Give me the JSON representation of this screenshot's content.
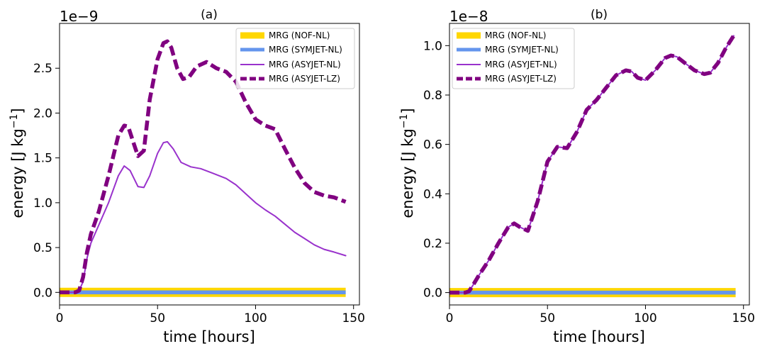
{
  "chart_data": [
    {
      "type": "line",
      "title": "(a)",
      "offset_text": "1e−9",
      "xlabel": "time [hours]",
      "ylabel_main": "energy [J kg",
      "ylabel_sup": "−1",
      "ylabel_end": "]",
      "xlim": [
        0,
        153
      ],
      "ylim": [
        -0.14,
        3.0
      ],
      "xticks": [
        0,
        50,
        100,
        150
      ],
      "xtick_labels": [
        "0",
        "50",
        "100",
        "150"
      ],
      "yticks": [
        0.0,
        0.5,
        1.0,
        1.5,
        2.0,
        2.5
      ],
      "ytick_labels": [
        "0.0",
        "0.5",
        "1.0",
        "1.5",
        "2.0",
        "2.5"
      ],
      "grid": false,
      "legend_position": "top-right",
      "series": [
        {
          "name": "MRG (NOF-NL)",
          "color": "#FFD700",
          "style": "thick",
          "x": [
            0,
            146
          ],
          "y": [
            0,
            0
          ]
        },
        {
          "name": "MRG (SYMJET-NL)",
          "color": "#6495ED",
          "style": "medium",
          "x": [
            0,
            146
          ],
          "y": [
            0,
            0
          ]
        },
        {
          "name": "MRG (ASYJET-NL)",
          "color": "#9932CC",
          "style": "thin",
          "x": [
            0,
            8,
            10,
            12,
            14,
            16,
            20,
            25,
            30,
            33,
            36,
            40,
            43,
            46,
            50,
            53,
            55,
            58,
            62,
            67,
            72,
            78,
            85,
            90,
            95,
            100,
            105,
            110,
            115,
            120,
            125,
            130,
            135,
            140,
            146
          ],
          "y": [
            0,
            0,
            0.02,
            0.12,
            0.38,
            0.55,
            0.75,
            1.0,
            1.3,
            1.41,
            1.36,
            1.18,
            1.17,
            1.3,
            1.55,
            1.67,
            1.68,
            1.6,
            1.45,
            1.4,
            1.38,
            1.33,
            1.27,
            1.2,
            1.1,
            1.0,
            0.92,
            0.85,
            0.76,
            0.67,
            0.6,
            0.53,
            0.48,
            0.45,
            0.41
          ]
        },
        {
          "name": "MRG (ASYJET-LZ)",
          "color": "#800080",
          "style": "dashed",
          "x": [
            0,
            8,
            10,
            12,
            14,
            16,
            20,
            25,
            30,
            33,
            35,
            38,
            40,
            43,
            46,
            50,
            53,
            55,
            57,
            60,
            63,
            66,
            70,
            75,
            80,
            85,
            90,
            95,
            100,
            105,
            110,
            115,
            120,
            125,
            130,
            135,
            140,
            146
          ],
          "y": [
            0,
            0,
            0.02,
            0.17,
            0.45,
            0.65,
            0.9,
            1.3,
            1.75,
            1.86,
            1.85,
            1.65,
            1.52,
            1.58,
            2.15,
            2.6,
            2.78,
            2.8,
            2.73,
            2.5,
            2.38,
            2.4,
            2.52,
            2.57,
            2.5,
            2.46,
            2.35,
            2.12,
            1.93,
            1.86,
            1.82,
            1.6,
            1.39,
            1.22,
            1.12,
            1.08,
            1.06,
            1.01
          ]
        }
      ]
    },
    {
      "type": "line",
      "title": "(b)",
      "offset_text": "1e−8",
      "xlabel": "time [hours]",
      "ylabel_main": "energy [J kg",
      "ylabel_sup": "−1",
      "ylabel_end": "]",
      "xlim": [
        0,
        153
      ],
      "ylim": [
        -0.05,
        1.09
      ],
      "xticks": [
        0,
        50,
        100,
        150
      ],
      "xtick_labels": [
        "0",
        "50",
        "100",
        "150"
      ],
      "yticks": [
        0.0,
        0.2,
        0.4,
        0.6,
        0.8,
        1.0
      ],
      "ytick_labels": [
        "0.0",
        "0.2",
        "0.4",
        "0.6",
        "0.8",
        "1.0"
      ],
      "grid": false,
      "legend_position": "top-left",
      "series": [
        {
          "name": "MRG (NOF-NL)",
          "color": "#FFD700",
          "style": "thick",
          "x": [
            0,
            146
          ],
          "y": [
            0,
            0
          ]
        },
        {
          "name": "MRG (SYMJET-NL)",
          "color": "#6495ED",
          "style": "medium",
          "x": [
            0,
            146
          ],
          "y": [
            0,
            0
          ]
        },
        {
          "name": "MRG (ASYJET-NL)",
          "color": "#9932CC",
          "style": "thin",
          "x": [
            0,
            8,
            10,
            12,
            15,
            20,
            25,
            30,
            33,
            36,
            40,
            45,
            50,
            55,
            60,
            65,
            70,
            75,
            80,
            85,
            90,
            93,
            96,
            100,
            105,
            110,
            113,
            116,
            120,
            125,
            130,
            133,
            137,
            141,
            145
          ],
          "y": [
            0,
            0,
            0.005,
            0.03,
            0.07,
            0.13,
            0.2,
            0.265,
            0.28,
            0.265,
            0.25,
            0.37,
            0.53,
            0.59,
            0.585,
            0.65,
            0.74,
            0.78,
            0.83,
            0.88,
            0.9,
            0.895,
            0.87,
            0.86,
            0.9,
            0.95,
            0.96,
            0.955,
            0.93,
            0.9,
            0.885,
            0.89,
            0.93,
            0.99,
            1.04
          ]
        },
        {
          "name": "MRG (ASYJET-LZ)",
          "color": "#800080",
          "style": "dashed",
          "x": [
            0,
            8,
            10,
            12,
            15,
            20,
            25,
            30,
            33,
            36,
            40,
            45,
            50,
            55,
            60,
            65,
            70,
            75,
            80,
            85,
            90,
            93,
            96,
            100,
            105,
            110,
            113,
            116,
            120,
            125,
            130,
            133,
            137,
            141,
            145
          ],
          "y": [
            0,
            0,
            0.005,
            0.03,
            0.07,
            0.13,
            0.2,
            0.265,
            0.28,
            0.265,
            0.25,
            0.37,
            0.53,
            0.59,
            0.585,
            0.65,
            0.74,
            0.78,
            0.83,
            0.88,
            0.9,
            0.895,
            0.87,
            0.86,
            0.9,
            0.95,
            0.96,
            0.955,
            0.93,
            0.9,
            0.885,
            0.89,
            0.93,
            0.99,
            1.04
          ]
        }
      ]
    }
  ]
}
